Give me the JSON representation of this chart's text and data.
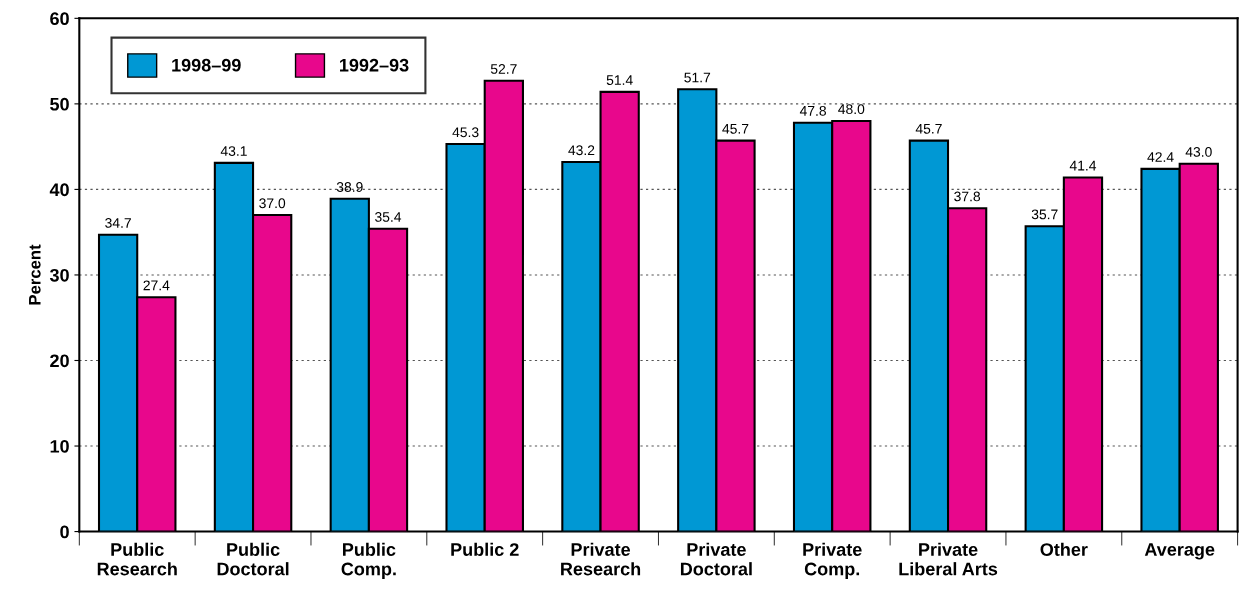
{
  "chart_data": {
    "type": "bar",
    "ylabel": "Percent",
    "categories": [
      "Public\nResearch",
      "Public\nDoctoral",
      "Public\nComp.",
      "Public 2",
      "Private\nResearch",
      "Private\nDoctoral",
      "Private\nComp.",
      "Private\nLiberal Arts",
      "Other",
      "Average"
    ],
    "series": [
      {
        "name": "1998–99",
        "color": "#0098d4",
        "values": [
          34.7,
          43.1,
          38.9,
          45.3,
          43.2,
          51.7,
          47.8,
          45.7,
          35.7,
          42.4
        ],
        "value_labels": [
          "34.7",
          "43.1",
          "38.9",
          "45.3",
          "43.2",
          "51.7",
          "47.8",
          "45.7",
          "35.7",
          "42.4"
        ]
      },
      {
        "name": "1992–93",
        "color": "#e8078c",
        "values": [
          27.4,
          37.0,
          35.4,
          52.7,
          51.4,
          45.7,
          48.0,
          37.8,
          41.4,
          43.0
        ],
        "value_labels": [
          "27.4",
          "37.0",
          "35.4",
          "52.7",
          "51.4",
          "45.7",
          "48.0",
          "37.8",
          "41.4",
          "43.0"
        ]
      }
    ],
    "ylim": [
      0,
      60
    ],
    "yticks": [
      0,
      10,
      20,
      30,
      40,
      50,
      60
    ],
    "grid": "y",
    "legend": "top left"
  }
}
